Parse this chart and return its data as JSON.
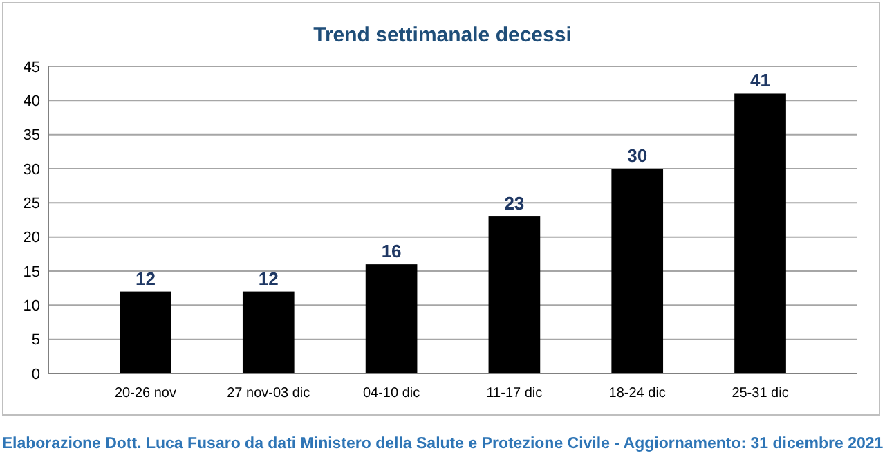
{
  "chart_data": {
    "type": "bar",
    "title": "Trend settimanale decessi",
    "categories": [
      "20-26 nov",
      "27 nov-03 dic",
      "04-10 dic",
      "11-17 dic",
      "18-24 dic",
      "25-31 dic"
    ],
    "values": [
      12,
      12,
      16,
      23,
      30,
      41
    ],
    "color": "#000000",
    "ylim": [
      0,
      45
    ],
    "yticks": [
      0,
      5,
      10,
      15,
      20,
      25,
      30,
      35,
      40,
      45
    ],
    "grid": "y",
    "data_labels": true,
    "annotations": [
      "Elaborazione Dott. Luca Fusaro da dati Ministero della Salute e Protezione Civile - Aggiornamento: 31 dicembre 2021"
    ]
  }
}
